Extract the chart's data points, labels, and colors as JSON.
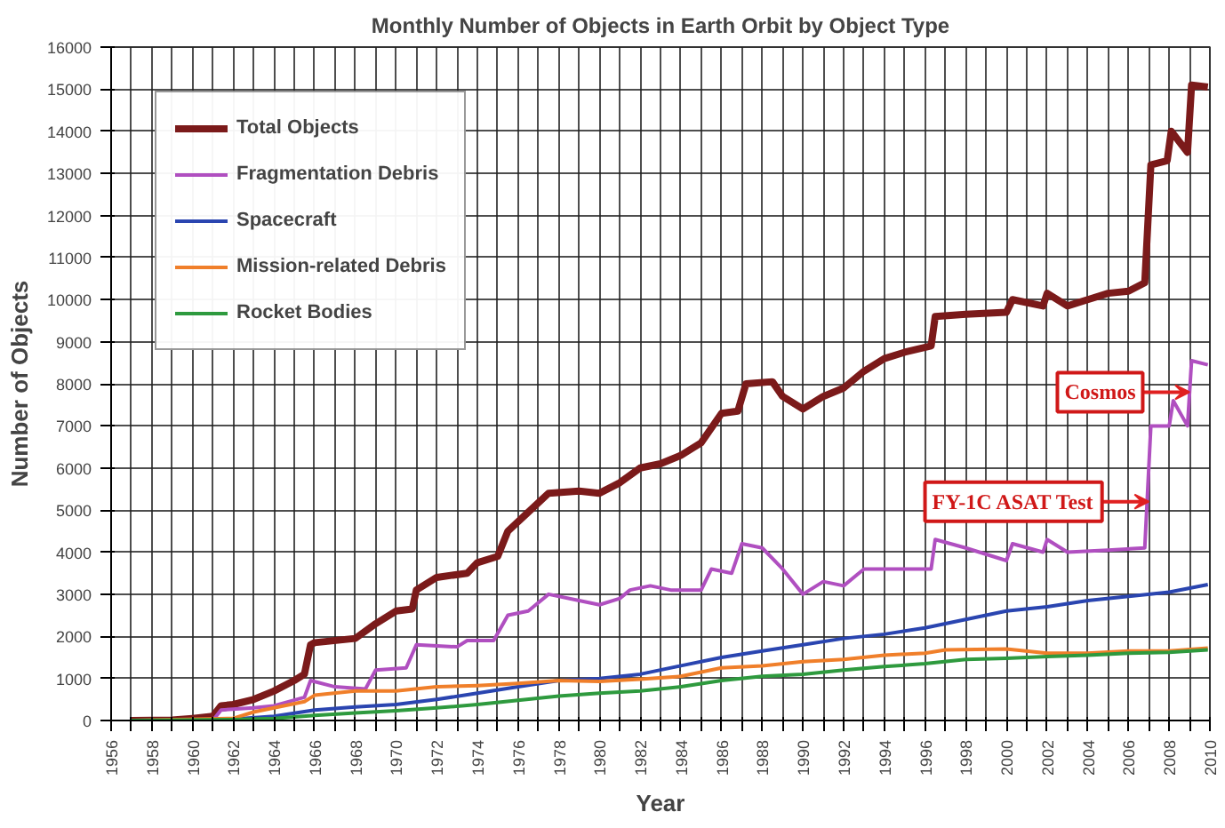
{
  "chart_data": {
    "type": "line",
    "title": "Monthly Number of Objects in Earth Orbit by Object Type",
    "xlabel": "Year",
    "ylabel": "Number of Objects",
    "xlim": [
      1956,
      2010
    ],
    "ylim": [
      0,
      16000
    ],
    "xticks": [
      1956,
      {
        "value": 1957,
        "label": null
      },
      1958,
      {
        "value": 1959,
        "label": null
      },
      1960,
      {
        "value": 1961,
        "label": null
      },
      1962,
      {
        "value": 1963,
        "label": null
      },
      1964,
      {
        "value": 1965,
        "label": null
      },
      1966,
      {
        "value": 1967,
        "label": null
      },
      1968,
      {
        "value": 1969,
        "label": null
      },
      1970,
      {
        "value": 1971,
        "label": null
      },
      1972,
      {
        "value": 1973,
        "label": null
      },
      1974,
      {
        "value": 1975,
        "label": null
      },
      1976,
      {
        "value": 1977,
        "label": null
      },
      1978,
      {
        "value": 1979,
        "label": null
      },
      1980,
      {
        "value": 1981,
        "label": null
      },
      1982,
      {
        "value": 1983,
        "label": null
      },
      1984,
      {
        "value": 1985,
        "label": null
      },
      1986,
      {
        "value": 1987,
        "label": null
      },
      1988,
      {
        "value": 1989,
        "label": null
      },
      1990,
      {
        "value": 1991,
        "label": null
      },
      1992,
      {
        "value": 1993,
        "label": null
      },
      1994,
      {
        "value": 1995,
        "label": null
      },
      1996,
      {
        "value": 1997,
        "label": null
      },
      1998,
      {
        "value": 1999,
        "label": null
      },
      2000,
      {
        "value": 2001,
        "label": null
      },
      2002,
      {
        "value": 2003,
        "label": null
      },
      2004,
      {
        "value": 2005,
        "label": null
      },
      2006,
      {
        "value": 2007,
        "label": null
      },
      2008,
      {
        "value": 2009,
        "label": null
      },
      2010
    ],
    "yticks": [
      0,
      1000,
      2000,
      3000,
      4000,
      5000,
      6000,
      7000,
      8000,
      9000,
      10000,
      11000,
      12000,
      13000,
      14000,
      15000,
      16000
    ],
    "grid": true,
    "legend": "top left",
    "marker": "none",
    "line_style": "solid",
    "annotations": [
      {
        "text": "Cosmos",
        "x": 2009,
        "y": 7800
      },
      {
        "text": "FY-1C ASAT Test",
        "x": 2007,
        "y": 5200
      }
    ],
    "series": [
      {
        "name": "Total Objects",
        "color": "#7b1a1a",
        "x": [
          1957,
          1959,
          1960,
          1961,
          1961.4,
          1962,
          1963,
          1964,
          1965,
          1965.5,
          1965.8,
          1966,
          1968,
          1969,
          1970,
          1970.8,
          1971,
          1972,
          1973.5,
          1974,
          1975,
          1975.5,
          1976.5,
          1977.5,
          1979,
          1980,
          1981,
          1982,
          1983,
          1984,
          1985,
          1986,
          1986.8,
          1987.2,
          1988.5,
          1989,
          1990,
          1991,
          1992,
          1993,
          1994,
          1995,
          1996.3,
          1996.5,
          1998,
          2000,
          2000.3,
          2001.8,
          2002,
          2003,
          2004,
          2005,
          2006,
          2006.8,
          2007.1,
          2007.9,
          2008.1,
          2008.9,
          2009.1,
          2009.9
        ],
        "values": [
          0,
          10,
          50,
          100,
          350,
          380,
          500,
          700,
          950,
          1100,
          1800,
          1850,
          1950,
          2300,
          2600,
          2650,
          3100,
          3400,
          3500,
          3750,
          3900,
          4500,
          4950,
          5400,
          5450,
          5400,
          5650,
          6000,
          6100,
          6300,
          6600,
          7300,
          7350,
          8000,
          8050,
          7700,
          7400,
          7700,
          7900,
          8300,
          8600,
          8750,
          8900,
          9600,
          9650,
          9700,
          10000,
          9850,
          10150,
          9850,
          10000,
          10150,
          10200,
          10400,
          13200,
          13300,
          14000,
          13500,
          15100,
          15050
        ]
      },
      {
        "name": "Fragmentation Debris",
        "color": "#b04fc0",
        "x": [
          1957,
          1961,
          1961.4,
          1963,
          1964,
          1965.5,
          1965.8,
          1967,
          1968.5,
          1969,
          1970.5,
          1971,
          1973,
          1973.5,
          1974.8,
          1975.5,
          1976.5,
          1977.5,
          1979,
          1980,
          1981,
          1981.5,
          1982.5,
          1983.5,
          1985,
          1985.5,
          1986.5,
          1987,
          1988,
          1989,
          1990,
          1991,
          1992,
          1993,
          1996.3,
          1996.5,
          1998,
          2000,
          2000.3,
          2001.8,
          2002,
          2003,
          2005,
          2006.8,
          2007.1,
          2008,
          2008.2,
          2008.9,
          2009.1,
          2009.9
        ],
        "values": [
          0,
          0,
          250,
          300,
          350,
          550,
          950,
          800,
          750,
          1200,
          1250,
          1800,
          1750,
          1900,
          1900,
          2500,
          2600,
          3000,
          2850,
          2750,
          2900,
          3100,
          3200,
          3100,
          3100,
          3600,
          3500,
          4200,
          4100,
          3600,
          3000,
          3300,
          3200,
          3600,
          3600,
          4300,
          4100,
          3800,
          4200,
          4000,
          4300,
          4000,
          4050,
          4100,
          7000,
          7000,
          7600,
          7000,
          8550,
          8450
        ]
      },
      {
        "name": "Spacecraft",
        "color": "#2a45b0",
        "x": [
          1957,
          1960,
          1962,
          1964,
          1966,
          1968,
          1970,
          1972,
          1974,
          1976,
          1978,
          1980,
          1982,
          1984,
          1986,
          1988,
          1990,
          1992,
          1994,
          1996,
          1998,
          2000,
          2002,
          2004,
          2006,
          2008,
          2009.9
        ],
        "values": [
          0,
          10,
          30,
          100,
          250,
          320,
          380,
          500,
          650,
          800,
          950,
          1000,
          1100,
          1300,
          1500,
          1650,
          1800,
          1950,
          2050,
          2200,
          2400,
          2600,
          2700,
          2850,
          2950,
          3050,
          3230
        ]
      },
      {
        "name": "Mission-related Debris",
        "color": "#f07f2a",
        "x": [
          1957,
          1962,
          1963,
          1964,
          1965.5,
          1966,
          1968,
          1970,
          1972,
          1974,
          1976,
          1978,
          1980,
          1982,
          1984,
          1986,
          1988,
          1990,
          1992,
          1994,
          1996,
          1997,
          2000,
          2002,
          2004,
          2006,
          2008,
          2009.9
        ],
        "values": [
          0,
          50,
          200,
          300,
          450,
          600,
          700,
          700,
          800,
          830,
          880,
          950,
          930,
          980,
          1050,
          1250,
          1300,
          1400,
          1450,
          1550,
          1600,
          1680,
          1700,
          1600,
          1600,
          1650,
          1650,
          1720
        ]
      },
      {
        "name": "Rocket Bodies",
        "color": "#2e9a3e",
        "x": [
          1957,
          1962,
          1964,
          1966,
          1968,
          1970,
          1972,
          1974,
          1976,
          1978,
          1980,
          1982,
          1984,
          1986,
          1988,
          1990,
          1992,
          1994,
          1996,
          1998,
          2000,
          2002,
          2004,
          2006,
          2008,
          2009.9
        ],
        "values": [
          0,
          20,
          50,
          120,
          180,
          230,
          300,
          380,
          480,
          580,
          650,
          700,
          800,
          950,
          1050,
          1100,
          1200,
          1280,
          1350,
          1450,
          1480,
          1520,
          1550,
          1600,
          1620,
          1680
        ]
      }
    ]
  }
}
